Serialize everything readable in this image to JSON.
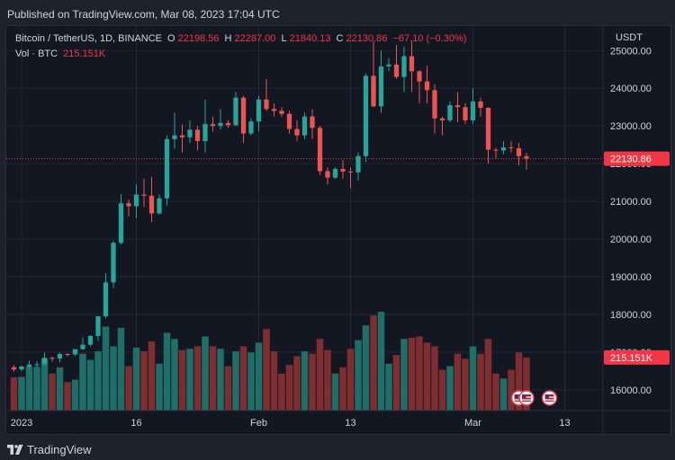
{
  "header": {
    "published": "Published on TradingView.com, Mar 08, 2023 17:04 UTC"
  },
  "legend": {
    "symbol": "Bitcoin / TetherUS, 1D, BINANCE",
    "o_label": "O",
    "o_value": "22198.56",
    "h_label": "H",
    "h_value": "22287.00",
    "l_label": "L",
    "l_value": "21840.13",
    "c_label": "C",
    "c_value": "22130.86",
    "change": "−67.10 (−0.30%)",
    "vol_label": "Vol · BTC",
    "vol_value": "215.151K"
  },
  "footer": {
    "brand": "TradingView"
  },
  "colors": {
    "up": "#26a69a",
    "down": "#ef5350",
    "up_vol": "#1f6e68",
    "down_vol": "#7e2e30",
    "price_line": "#f23645",
    "grid": "#232733",
    "axis_text": "#d1d4dc"
  },
  "chart_data": {
    "type": "candlestick",
    "currency": "USDT",
    "y_ticks": [
      16000,
      17000,
      18000,
      19000,
      20000,
      21000,
      22000,
      23000,
      24000,
      25000
    ],
    "y_tick_labels": [
      "16000.00",
      "17000.00",
      "18000.00",
      "19000.00",
      "20000.00",
      "21000.00",
      "22000.00",
      "23000.00",
      "24000.00",
      "25000.00"
    ],
    "ylim": [
      15450,
      25650
    ],
    "x_ticks": [
      {
        "date": "2023-01-01",
        "label": "2023"
      },
      {
        "date": "2023-01-16",
        "label": "16"
      },
      {
        "date": "2023-02-01",
        "label": "Feb"
      },
      {
        "date": "2023-02-13",
        "label": "13"
      },
      {
        "date": "2023-03-01",
        "label": "Mar"
      },
      {
        "date": "2023-03-13",
        "label": "13"
      }
    ],
    "x_range": [
      "2022-12-30",
      "2023-03-18"
    ],
    "last_price": 22130.86,
    "last_price_label": "22130.86",
    "last_volume": 215.151,
    "last_volume_label": "215.151K",
    "volume_unit": "K BTC",
    "volume_max": 400,
    "candles": [
      {
        "date": "2022-12-31",
        "o": 16600,
        "h": 16650,
        "l": 16480,
        "c": 16540,
        "v": 135
      },
      {
        "date": "2023-01-01",
        "o": 16540,
        "h": 16640,
        "l": 16500,
        "c": 16620,
        "v": 136
      },
      {
        "date": "2023-01-02",
        "o": 16620,
        "h": 16780,
        "l": 16550,
        "c": 16670,
        "v": 178
      },
      {
        "date": "2023-01-03",
        "o": 16670,
        "h": 16760,
        "l": 16600,
        "c": 16680,
        "v": 177
      },
      {
        "date": "2023-01-04",
        "o": 16680,
        "h": 16990,
        "l": 16650,
        "c": 16850,
        "v": 210
      },
      {
        "date": "2023-01-05",
        "o": 16850,
        "h": 16880,
        "l": 16750,
        "c": 16830,
        "v": 150
      },
      {
        "date": "2023-01-06",
        "o": 16830,
        "h": 16990,
        "l": 16730,
        "c": 16950,
        "v": 175
      },
      {
        "date": "2023-01-07",
        "o": 16950,
        "h": 16970,
        "l": 16890,
        "c": 16940,
        "v": 115
      },
      {
        "date": "2023-01-08",
        "o": 16940,
        "h": 17080,
        "l": 16900,
        "c": 17080,
        "v": 125
      },
      {
        "date": "2023-01-09",
        "o": 17080,
        "h": 17390,
        "l": 17060,
        "c": 17200,
        "v": 230
      },
      {
        "date": "2023-01-10",
        "o": 17200,
        "h": 17450,
        "l": 17150,
        "c": 17430,
        "v": 205
      },
      {
        "date": "2023-01-11",
        "o": 17430,
        "h": 17950,
        "l": 17300,
        "c": 17950,
        "v": 240
      },
      {
        "date": "2023-01-12",
        "o": 17950,
        "h": 19100,
        "l": 17900,
        "c": 18850,
        "v": 340
      },
      {
        "date": "2023-01-13",
        "o": 18850,
        "h": 19950,
        "l": 18700,
        "c": 19900,
        "v": 260
      },
      {
        "date": "2023-01-14",
        "o": 19900,
        "h": 21200,
        "l": 19850,
        "c": 20950,
        "v": 335
      },
      {
        "date": "2023-01-15",
        "o": 20950,
        "h": 21050,
        "l": 20600,
        "c": 20870,
        "v": 180
      },
      {
        "date": "2023-01-16",
        "o": 20870,
        "h": 21450,
        "l": 20550,
        "c": 21180,
        "v": 255
      },
      {
        "date": "2023-01-17",
        "o": 21180,
        "h": 21600,
        "l": 20850,
        "c": 21150,
        "v": 240
      },
      {
        "date": "2023-01-18",
        "o": 21150,
        "h": 21650,
        "l": 20450,
        "c": 20680,
        "v": 280
      },
      {
        "date": "2023-01-19",
        "o": 20680,
        "h": 21180,
        "l": 20650,
        "c": 21080,
        "v": 190
      },
      {
        "date": "2023-01-20",
        "o": 21080,
        "h": 22750,
        "l": 20880,
        "c": 22650,
        "v": 315
      },
      {
        "date": "2023-01-21",
        "o": 22650,
        "h": 23350,
        "l": 22400,
        "c": 22750,
        "v": 290
      },
      {
        "date": "2023-01-22",
        "o": 22750,
        "h": 23050,
        "l": 22300,
        "c": 22700,
        "v": 245
      },
      {
        "date": "2023-01-23",
        "o": 22700,
        "h": 23150,
        "l": 22550,
        "c": 22900,
        "v": 250
      },
      {
        "date": "2023-01-24",
        "o": 22900,
        "h": 23000,
        "l": 22350,
        "c": 22600,
        "v": 260
      },
      {
        "date": "2023-01-25",
        "o": 22600,
        "h": 23700,
        "l": 22300,
        "c": 23050,
        "v": 300
      },
      {
        "date": "2023-01-26",
        "o": 23050,
        "h": 23250,
        "l": 22850,
        "c": 23000,
        "v": 260
      },
      {
        "date": "2023-01-27",
        "o": 23000,
        "h": 23450,
        "l": 22900,
        "c": 23080,
        "v": 250
      },
      {
        "date": "2023-01-28",
        "o": 23080,
        "h": 23150,
        "l": 22950,
        "c": 23020,
        "v": 180
      },
      {
        "date": "2023-01-29",
        "o": 23020,
        "h": 23900,
        "l": 23000,
        "c": 23750,
        "v": 240
      },
      {
        "date": "2023-01-30",
        "o": 23750,
        "h": 23800,
        "l": 22550,
        "c": 22800,
        "v": 260
      },
      {
        "date": "2023-01-31",
        "o": 22800,
        "h": 23200,
        "l": 22750,
        "c": 23120,
        "v": 235
      },
      {
        "date": "2023-02-01",
        "o": 23120,
        "h": 23800,
        "l": 22850,
        "c": 23700,
        "v": 275
      },
      {
        "date": "2023-02-02",
        "o": 23700,
        "h": 24250,
        "l": 23400,
        "c": 23450,
        "v": 330
      },
      {
        "date": "2023-02-03",
        "o": 23450,
        "h": 23600,
        "l": 23250,
        "c": 23400,
        "v": 240
      },
      {
        "date": "2023-02-04",
        "o": 23400,
        "h": 23500,
        "l": 23250,
        "c": 23320,
        "v": 150
      },
      {
        "date": "2023-02-05",
        "o": 23320,
        "h": 23400,
        "l": 22800,
        "c": 22920,
        "v": 185
      },
      {
        "date": "2023-02-06",
        "o": 22920,
        "h": 23150,
        "l": 22600,
        "c": 22750,
        "v": 220
      },
      {
        "date": "2023-02-07",
        "o": 22750,
        "h": 23350,
        "l": 22650,
        "c": 23250,
        "v": 240
      },
      {
        "date": "2023-02-08",
        "o": 23250,
        "h": 23450,
        "l": 22650,
        "c": 22950,
        "v": 230
      },
      {
        "date": "2023-02-09",
        "o": 22950,
        "h": 23000,
        "l": 21700,
        "c": 21800,
        "v": 290
      },
      {
        "date": "2023-02-10",
        "o": 21800,
        "h": 21900,
        "l": 21450,
        "c": 21630,
        "v": 245
      },
      {
        "date": "2023-02-11",
        "o": 21630,
        "h": 21900,
        "l": 21600,
        "c": 21860,
        "v": 150
      },
      {
        "date": "2023-02-12",
        "o": 21860,
        "h": 22100,
        "l": 21600,
        "c": 21790,
        "v": 175
      },
      {
        "date": "2023-02-13",
        "o": 21790,
        "h": 21900,
        "l": 21350,
        "c": 21770,
        "v": 250
      },
      {
        "date": "2023-02-14",
        "o": 21770,
        "h": 22300,
        "l": 21550,
        "c": 22200,
        "v": 285
      },
      {
        "date": "2023-02-15",
        "o": 22200,
        "h": 24400,
        "l": 22050,
        "c": 24330,
        "v": 345
      },
      {
        "date": "2023-02-16",
        "o": 24330,
        "h": 25250,
        "l": 23500,
        "c": 23520,
        "v": 385
      },
      {
        "date": "2023-02-17",
        "o": 23520,
        "h": 25000,
        "l": 23350,
        "c": 24580,
        "v": 400
      },
      {
        "date": "2023-02-18",
        "o": 24580,
        "h": 24800,
        "l": 24450,
        "c": 24630,
        "v": 190
      },
      {
        "date": "2023-02-19",
        "o": 24630,
        "h": 25150,
        "l": 24250,
        "c": 24300,
        "v": 225
      },
      {
        "date": "2023-02-20",
        "o": 24300,
        "h": 25100,
        "l": 23900,
        "c": 24850,
        "v": 290
      },
      {
        "date": "2023-02-21",
        "o": 24850,
        "h": 25250,
        "l": 23900,
        "c": 24450,
        "v": 295
      },
      {
        "date": "2023-02-22",
        "o": 24450,
        "h": 24480,
        "l": 23600,
        "c": 24180,
        "v": 300
      },
      {
        "date": "2023-02-23",
        "o": 24180,
        "h": 24600,
        "l": 23600,
        "c": 23950,
        "v": 275
      },
      {
        "date": "2023-02-24",
        "o": 23950,
        "h": 24100,
        "l": 22800,
        "c": 23200,
        "v": 260
      },
      {
        "date": "2023-02-25",
        "o": 23200,
        "h": 23250,
        "l": 22750,
        "c": 23150,
        "v": 165
      },
      {
        "date": "2023-02-26",
        "o": 23150,
        "h": 23650,
        "l": 23100,
        "c": 23550,
        "v": 180
      },
      {
        "date": "2023-02-27",
        "o": 23550,
        "h": 23900,
        "l": 23100,
        "c": 23500,
        "v": 230
      },
      {
        "date": "2023-02-28",
        "o": 23500,
        "h": 23600,
        "l": 23050,
        "c": 23150,
        "v": 210
      },
      {
        "date": "2023-03-01",
        "o": 23150,
        "h": 24000,
        "l": 23050,
        "c": 23650,
        "v": 260
      },
      {
        "date": "2023-03-02",
        "o": 23650,
        "h": 23750,
        "l": 23250,
        "c": 23480,
        "v": 230
      },
      {
        "date": "2023-03-03",
        "o": 23480,
        "h": 23500,
        "l": 22000,
        "c": 22370,
        "v": 290
      },
      {
        "date": "2023-03-04",
        "o": 22370,
        "h": 22420,
        "l": 22150,
        "c": 22350,
        "v": 150
      },
      {
        "date": "2023-03-05",
        "o": 22350,
        "h": 22600,
        "l": 22250,
        "c": 22430,
        "v": 130
      },
      {
        "date": "2023-03-06",
        "o": 22430,
        "h": 22600,
        "l": 22300,
        "c": 22410,
        "v": 165
      },
      {
        "date": "2023-03-07",
        "o": 22410,
        "h": 22550,
        "l": 21950,
        "c": 22200,
        "v": 235
      },
      {
        "date": "2023-03-08",
        "o": 22198.56,
        "h": 22287.0,
        "l": 21840.13,
        "c": 22130.86,
        "v": 215.151
      }
    ],
    "events": [
      "us-flag-icon",
      "us-flag-icon",
      "us-flag-icon"
    ]
  }
}
